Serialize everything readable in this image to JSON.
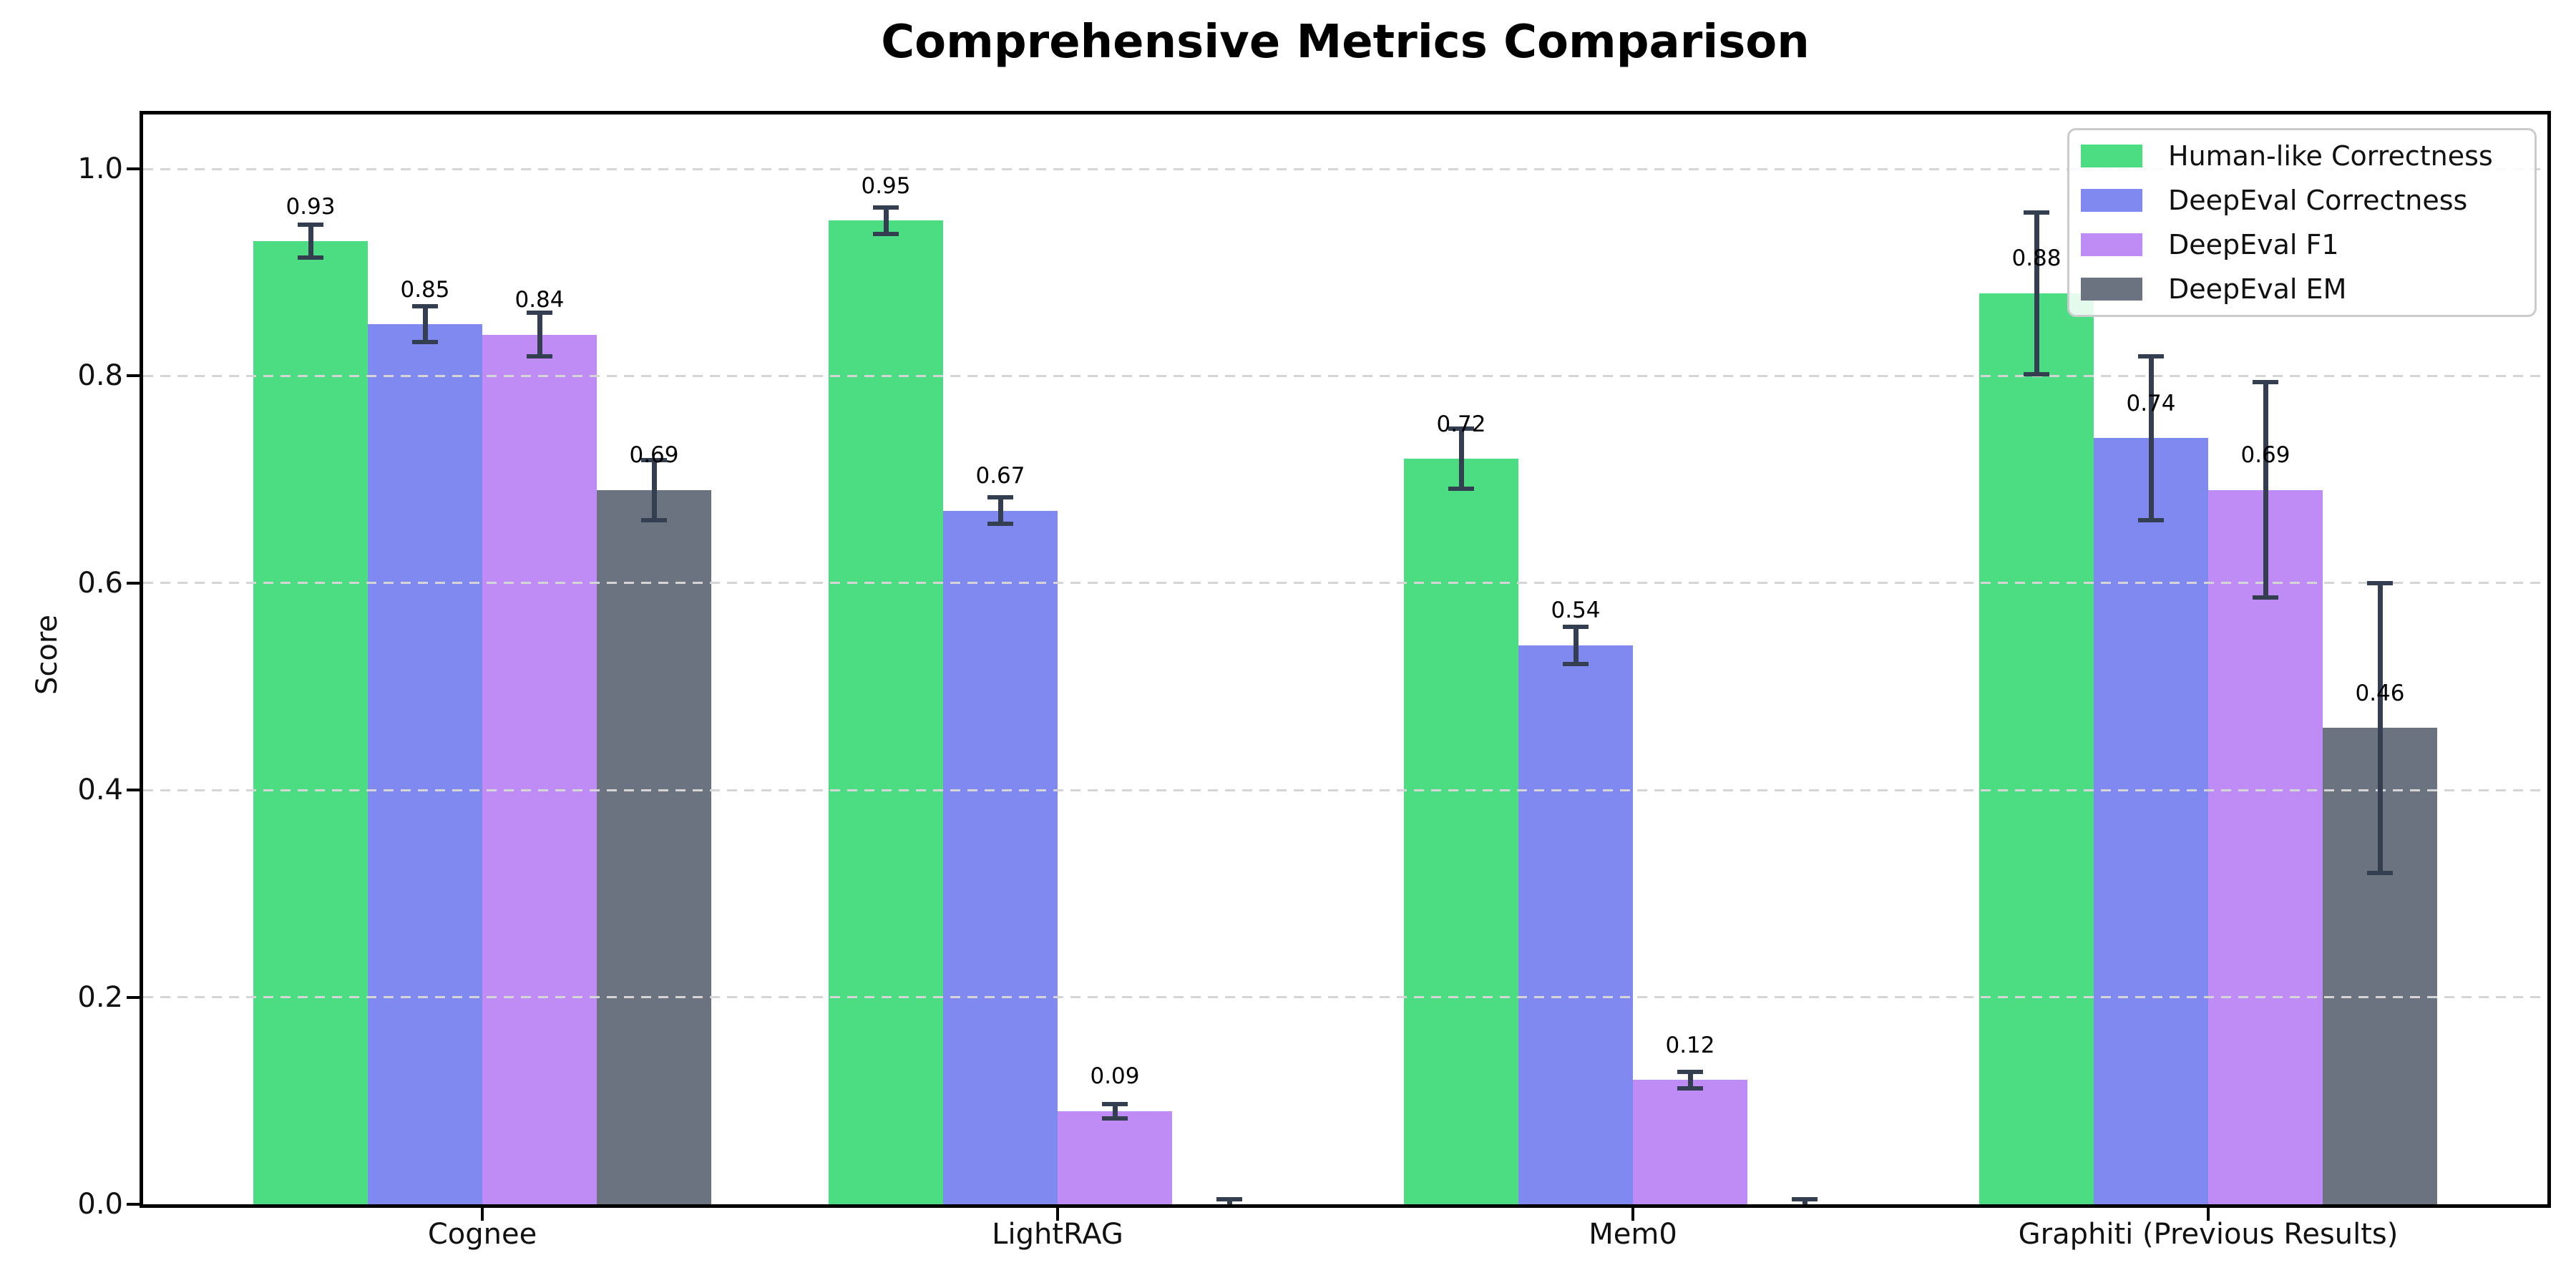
{
  "chart_data": {
    "type": "bar",
    "title": "Comprehensive Metrics Comparison",
    "xlabel": "",
    "ylabel": "Score",
    "categories": [
      "Cognee",
      "LightRAG",
      "Mem0",
      "Graphiti (Previous Results)"
    ],
    "series": [
      {
        "name": "Human-like Correctness",
        "color": "#4cdc81",
        "values": [
          0.93,
          0.95,
          0.72,
          0.88
        ],
        "errors": [
          0.016,
          0.013,
          0.029,
          0.078
        ],
        "labels": [
          "0.93",
          "0.95",
          "0.72",
          "0.88"
        ]
      },
      {
        "name": "DeepEval Correctness",
        "color": "#7f89f0",
        "values": [
          0.85,
          0.67,
          0.54,
          0.74
        ],
        "errors": [
          0.017,
          0.013,
          0.018,
          0.079
        ],
        "labels": [
          "0.85",
          "0.67",
          "0.54",
          "0.74"
        ]
      },
      {
        "name": "DeepEval F1",
        "color": "#bf8bf5",
        "values": [
          0.84,
          0.09,
          0.12,
          0.69
        ],
        "errors": [
          0.021,
          0.007,
          0.008,
          0.104
        ],
        "labels": [
          "0.84",
          "0.09",
          "0.12",
          "0.69"
        ]
      },
      {
        "name": "DeepEval EM",
        "color": "#6b7280",
        "values": [
          0.69,
          0.0,
          0.0,
          0.46
        ],
        "errors": [
          0.029,
          0.005,
          0.005,
          0.14
        ],
        "labels": [
          "0.69",
          null,
          null,
          "0.46"
        ]
      }
    ],
    "yticks": [
      0.0,
      0.2,
      0.4,
      0.6,
      0.8,
      1.0
    ],
    "ytick_labels": [
      "0.0",
      "0.2",
      "0.4",
      "0.6",
      "0.8",
      "1.0"
    ],
    "ylim": [
      0,
      1.052
    ],
    "grid": {
      "axis": "y",
      "style": "dashed",
      "color": "#d5d5d5"
    },
    "legend": {
      "position": "upper right"
    },
    "error_bar_color": "#333f50",
    "axis_color": "#000000",
    "background_color": "#ffffff"
  }
}
